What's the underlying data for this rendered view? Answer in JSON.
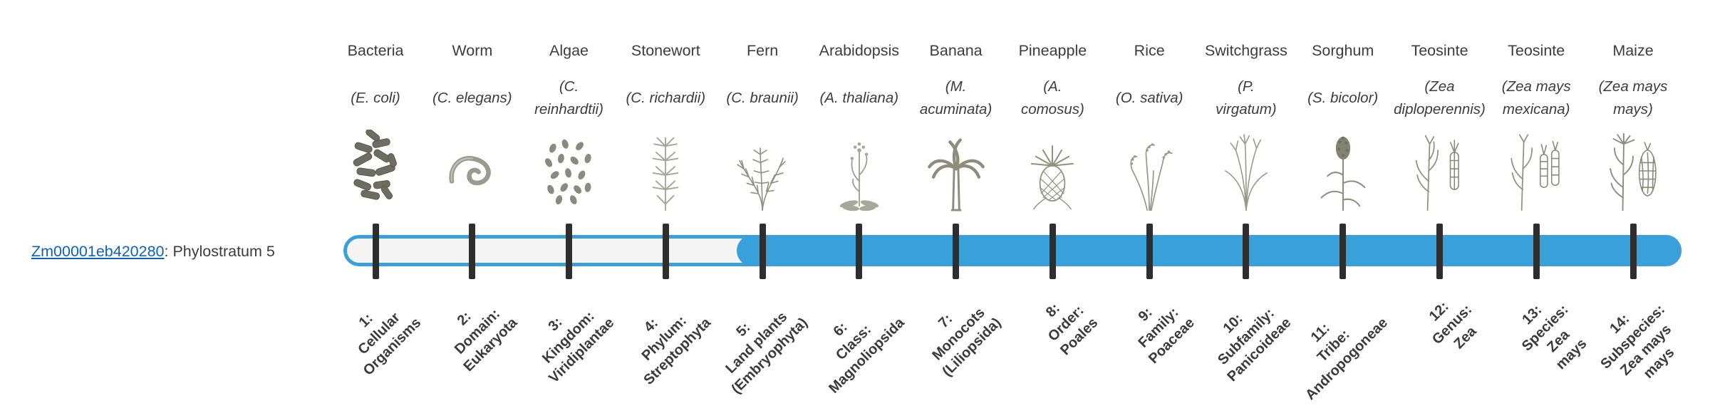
{
  "gene": {
    "id": "Zm00001eb420280",
    "suffix": ": Phylostratum 5",
    "phylostratum": 5
  },
  "colors": {
    "bar_fill": "#3aa0da",
    "bar_track_bg": "#f4f4f2",
    "tick": "#2e2e2e",
    "link": "#0b61c2",
    "text": "#3c3c3c"
  },
  "columns": [
    {
      "organism": "Bacteria",
      "scientific": "(E. coli)",
      "icon": "bacteria",
      "stage_label": "1:\nCellular\nOrganisms"
    },
    {
      "organism": "Worm",
      "scientific": "(C. elegans)",
      "icon": "worm",
      "stage_label": "2:\nDomain:\nEukaryota"
    },
    {
      "organism": "Algae",
      "scientific": "(C.\nreinhardtii)",
      "icon": "algae",
      "stage_label": "3:\nKingdom:\nViridiplantae"
    },
    {
      "organism": "Stonewort",
      "scientific": "(C. richardii)",
      "icon": "stonewort",
      "stage_label": "4:\nPhylum:\nStreptophyta"
    },
    {
      "organism": "Fern",
      "scientific": "(C. braunii)",
      "icon": "fern",
      "stage_label": "5:\nLand plants\n(Embryophyta)"
    },
    {
      "organism": "Arabidopsis",
      "scientific": "(A. thaliana)",
      "icon": "arabidopsis",
      "stage_label": "6:\nClass:\nMagnoliopsida"
    },
    {
      "organism": "Banana",
      "scientific": "(M.\nacuminata)",
      "icon": "banana",
      "stage_label": "7:\nMonocots\n(Liliopsida)"
    },
    {
      "organism": "Pineapple",
      "scientific": "(A.\ncomosus)",
      "icon": "pineapple",
      "stage_label": "8:\nOrder:\nPoales"
    },
    {
      "organism": "Rice",
      "scientific": "(O. sativa)",
      "icon": "rice",
      "stage_label": "9:\nFamily:\nPoaceae"
    },
    {
      "organism": "Switchgrass",
      "scientific": "(P.\nvirgatum)",
      "icon": "switchgrass",
      "stage_label": "10:\nSubfamily:\nPanicoideae"
    },
    {
      "organism": "Sorghum",
      "scientific": "(S. bicolor)",
      "icon": "sorghum",
      "stage_label": "11:\nTribe:\nAndropogoneae"
    },
    {
      "organism": "Teosinte",
      "scientific": "(Zea\ndiploperennis)",
      "icon": "teosinte-diploperennis",
      "stage_label": "12:\nGenus:\nZea"
    },
    {
      "organism": "Teosinte",
      "scientific": "(Zea mays\nmexicana)",
      "icon": "teosinte-mexicana",
      "stage_label": "13:\nSpecies:\nZea\nmays"
    },
    {
      "organism": "Maize",
      "scientific": "(Zea mays\nmays)",
      "icon": "maize",
      "stage_label": "14:\nSubspecies:\nZea mays\nmays"
    }
  ]
}
